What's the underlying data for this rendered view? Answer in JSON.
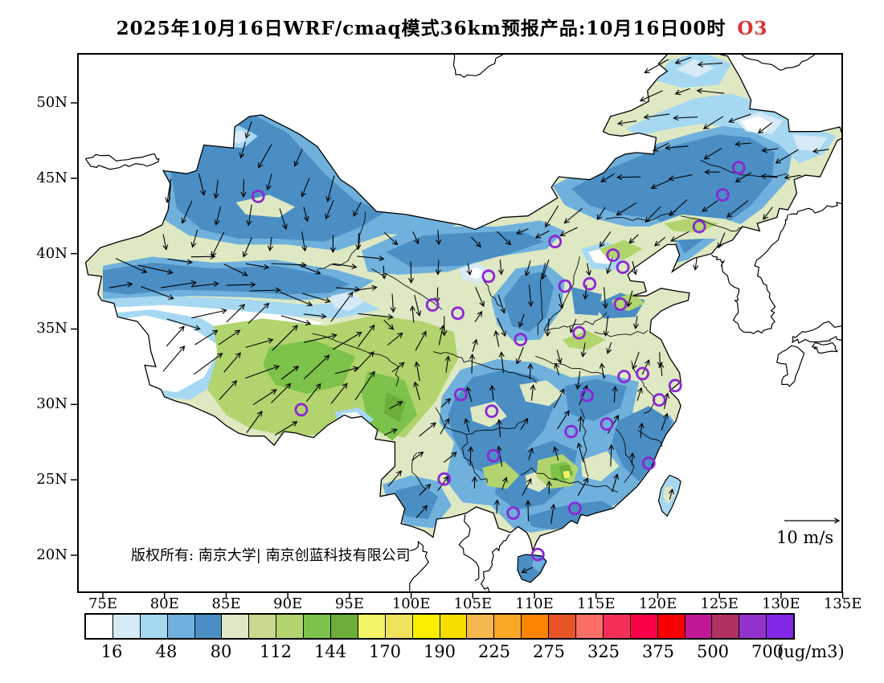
{
  "title": {
    "text": "2025年10月16日WRF/cmaq模式36km预报产品:10月16日00时",
    "pollutant": "O3",
    "pollutant_color": "#e03131"
  },
  "map": {
    "copyright": "版权所有: 南京大学| 南京创蓝科技有限公司",
    "wind_legend_label": "10 m/s",
    "y_axis_labels": [
      "50N",
      "45N",
      "40N",
      "35N",
      "30N",
      "25N",
      "20N"
    ],
    "x_axis_labels": [
      "75E",
      "80E",
      "85E",
      "90E",
      "95E",
      "100E",
      "105E",
      "110E",
      "115E",
      "120E",
      "125E",
      "130E",
      "135E"
    ],
    "city_marker_color": "#8B26D2",
    "city_markers_lonlat": [
      [
        87.6,
        43.8
      ],
      [
        126.6,
        45.7
      ],
      [
        125.3,
        43.9
      ],
      [
        123.4,
        41.8
      ],
      [
        111.7,
        40.8
      ],
      [
        116.4,
        39.9
      ],
      [
        117.2,
        39.1
      ],
      [
        114.5,
        38.0
      ],
      [
        112.5,
        37.85
      ],
      [
        106.3,
        38.5
      ],
      [
        103.8,
        36.05
      ],
      [
        101.75,
        36.6
      ],
      [
        108.9,
        34.3
      ],
      [
        113.65,
        34.75
      ],
      [
        117.0,
        36.65
      ],
      [
        117.3,
        31.85
      ],
      [
        118.8,
        32.05
      ],
      [
        121.45,
        31.25
      ],
      [
        120.15,
        30.3
      ],
      [
        114.3,
        30.6
      ],
      [
        115.9,
        28.7
      ],
      [
        113.0,
        28.2
      ],
      [
        104.05,
        30.65
      ],
      [
        106.55,
        29.55
      ],
      [
        106.7,
        26.6
      ],
      [
        102.7,
        25.05
      ],
      [
        119.3,
        26.1
      ],
      [
        113.3,
        23.1
      ],
      [
        108.3,
        22.8
      ],
      [
        110.3,
        20.05
      ],
      [
        91.1,
        29.65
      ]
    ]
  },
  "colorbar": {
    "cells": [
      "#FFFFFF",
      "#D6EAF8",
      "#A6D8F2",
      "#6FB0DC",
      "#4A8EC4",
      "#DEE9C3",
      "#C8D98E",
      "#B2D46E",
      "#7CC24B",
      "#6CAE3A",
      "#F2F466",
      "#EFE35C",
      "#FBEE00",
      "#F6DF00",
      "#F6B84E",
      "#FBA827",
      "#FB8500",
      "#E95426",
      "#FB6E68",
      "#F52F58",
      "#FB0048",
      "#FA0000",
      "#C31895",
      "#B03061",
      "#9332CB",
      "#8327E6"
    ],
    "labels": [
      "16",
      "48",
      "80",
      "112",
      "144",
      "170",
      "190",
      "225",
      "275",
      "325",
      "375",
      "500",
      "700"
    ],
    "unit": "(ug/m3)"
  }
}
